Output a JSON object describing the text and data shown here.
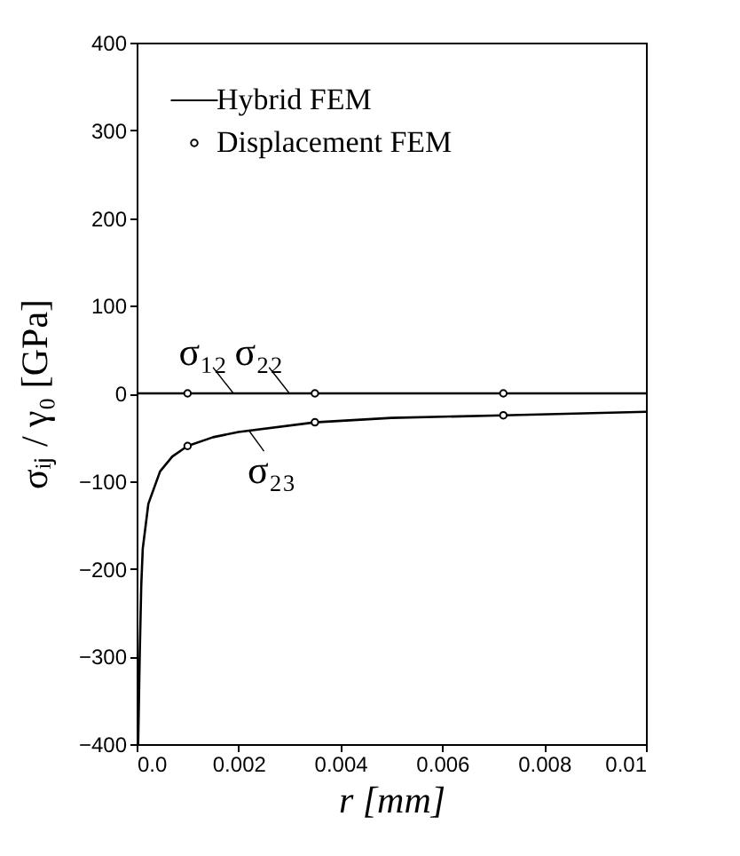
{
  "chart_data": {
    "type": "line",
    "xlabel": "r [mm]",
    "ylabel": "σᵢⱼ / γ₀ [GPa]",
    "xlim": [
      0,
      0.01
    ],
    "xticks": [
      {
        "value": 0,
        "label": "0.0"
      },
      0.002,
      0.004,
      0.006,
      0.008,
      0.01
    ],
    "ylim": [
      -400,
      400
    ],
    "yticks": [
      -400,
      -300,
      -200,
      -100,
      0,
      100,
      200,
      300,
      400
    ],
    "grid": false,
    "legend": "top left",
    "line_style": "solid",
    "series": [
      {
        "name": "Hybrid FEM",
        "color": "#000000",
        "x": [
          3e-05,
          6e-05,
          9e-05,
          0.00012,
          0.00023,
          0.00046,
          0.0007,
          0.001,
          0.0015,
          0.002,
          0.0035,
          0.005,
          0.0072,
          0.01
        ],
        "values": [
          -400,
          -300,
          -220,
          -177,
          -126,
          -89,
          -72,
          -60,
          -50,
          -44,
          -33,
          -28,
          -25,
          -21
        ]
      },
      {
        "color": "#000000",
        "x": [
          0,
          0.01
        ],
        "values": [
          0,
          0
        ]
      },
      {
        "name": "Displacement FEM",
        "type": "scatter",
        "marker": "circle",
        "color": "#000000",
        "x": [
          0.001,
          0.0035,
          0.0072,
          0.001,
          0.0035,
          0.0072
        ],
        "values": [
          -60,
          -33,
          -25,
          0,
          0,
          0
        ]
      }
    ],
    "annotations": [
      {
        "text": "σ₁₂",
        "x": 0.0019,
        "y": 0
      },
      {
        "text": "σ₂₂",
        "x": 0.003,
        "y": 0
      },
      {
        "text": "σ₂₃",
        "x": 0.0022,
        "y": -42
      }
    ]
  }
}
